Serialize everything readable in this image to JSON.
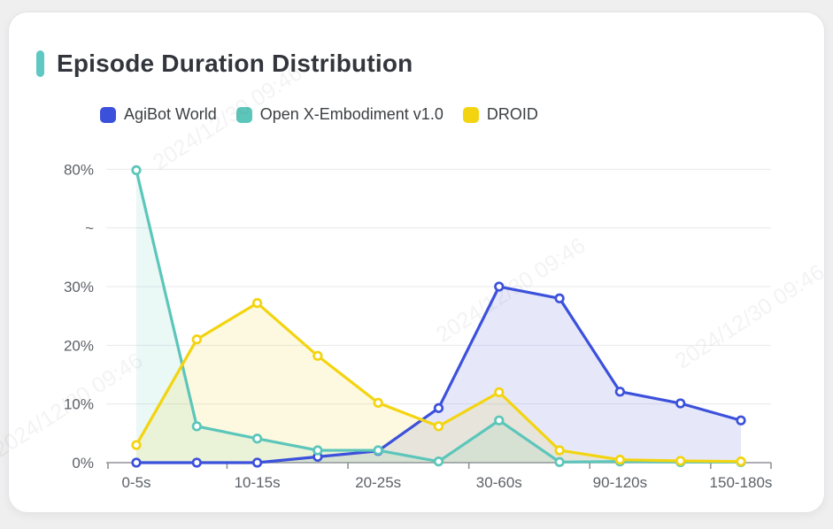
{
  "header": {
    "title": "Episode Duration Distribution"
  },
  "accent_color": "#5fc8c3",
  "watermark": {
    "text": "2024/12/30 09:46"
  },
  "chart_data": {
    "type": "line",
    "title": "Episode Duration Distribution",
    "n_points": 11,
    "x_tick_labels": [
      "0-5s",
      "10-15s",
      "20-25s",
      "30-60s",
      "90-120s",
      "150-180s"
    ],
    "x_label_indices": [
      0,
      2,
      4,
      6,
      8,
      10
    ],
    "xlabel": "",
    "ylabel": "",
    "y_axis": {
      "ticks": [
        "0%",
        "10%",
        "20%",
        "30%",
        "~",
        "80%"
      ],
      "has_break": true,
      "break_between": [
        30,
        80
      ],
      "unit": "%"
    },
    "grid": true,
    "legend_position": "top",
    "marker": "hollow-circle",
    "area_fill": true,
    "colors": {
      "grid_line": "#e8e8ec",
      "axis_line": "#90939b",
      "label": "#5d6167"
    },
    "series": [
      {
        "name": "AgiBot World",
        "color": "#3c51db",
        "values": [
          0,
          0,
          0,
          1,
          2,
          9.3,
          30,
          28,
          12.1,
          10.1,
          7.2
        ]
      },
      {
        "name": "Open X-Embodiment v1.0",
        "color": "#5cc6ba",
        "values": [
          79.6,
          6.2,
          4.1,
          2.1,
          2.1,
          0.2,
          7.2,
          0.1,
          0.2,
          0.1,
          0.1
        ]
      },
      {
        "name": "DROID",
        "color": "#f3d410",
        "values": [
          3,
          21,
          27.2,
          18.2,
          10.2,
          6.2,
          12,
          2.1,
          0.5,
          0.3,
          0.2
        ]
      }
    ]
  }
}
